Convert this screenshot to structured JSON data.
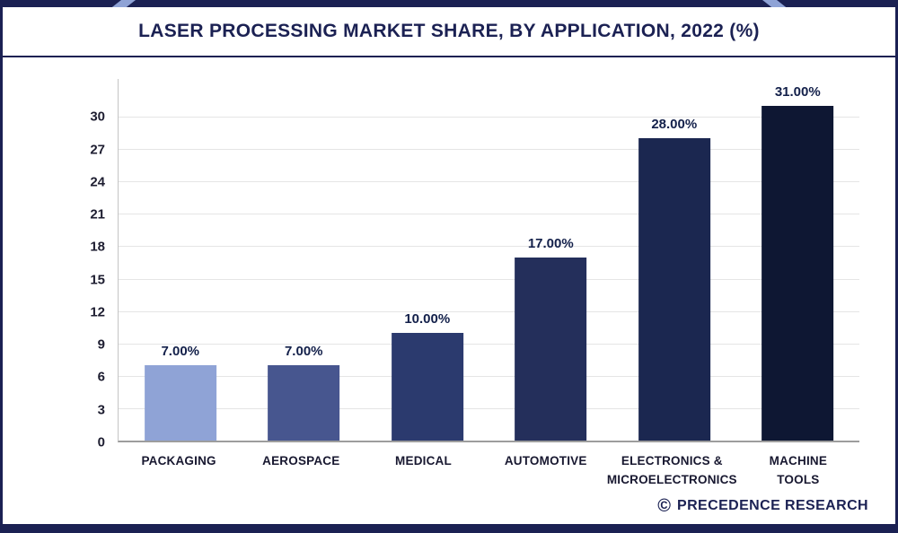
{
  "header": {
    "title": "LASER PROCESSING MARKET SHARE, BY APPLICATION, 2022 (%)"
  },
  "footer": {
    "copyright_symbol": "©",
    "brand_name": "PRECEDENCE RESEARCH"
  },
  "colors": {
    "accent_navy": "#1b2153",
    "banner_accent_light": "#8fa3d6",
    "grid_line": "#e5e5e5",
    "axis_line": "#9d9d9d"
  },
  "chart_data": {
    "type": "bar",
    "title": "LASER PROCESSING MARKET SHARE, BY APPLICATION, 2022 (%)",
    "categories": [
      "PACKAGING",
      "AEROSPACE",
      "MEDICAL",
      "AUTOMOTIVE",
      "ELECTRONICS &\nMICROELECTRONICS",
      "MACHINE\nTOOLS"
    ],
    "values": [
      7,
      7,
      10,
      17,
      28,
      31
    ],
    "value_labels": [
      "7.00%",
      "7.00%",
      "10.00%",
      "17.00%",
      "28.00%",
      "31.00%"
    ],
    "bar_colors": [
      "#8fa3d6",
      "#47568f",
      "#2b3a6e",
      "#242f5b",
      "#1b2750",
      "#0e1733"
    ],
    "xlabel": "",
    "ylabel": "",
    "yticks": [
      0,
      3,
      6,
      9,
      12,
      15,
      18,
      21,
      24,
      27,
      30
    ],
    "ylim": [
      0,
      33.5
    ],
    "grid": "horizontal",
    "legend": "none"
  }
}
